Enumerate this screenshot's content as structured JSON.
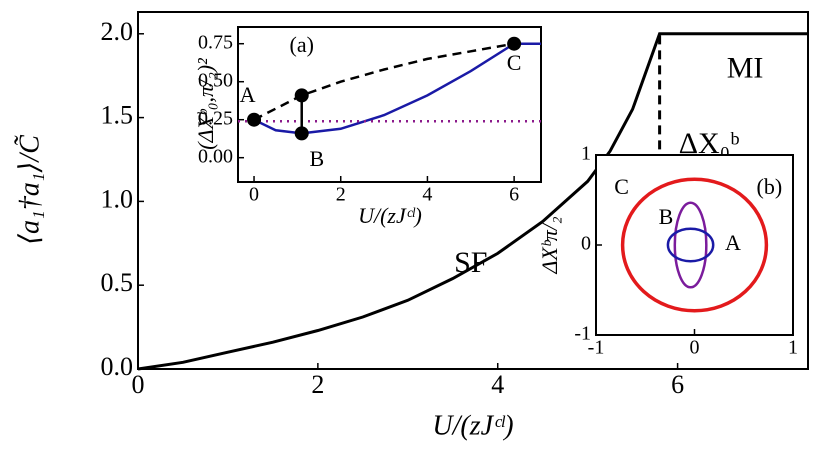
{
  "chart_data": [
    {
      "type": "line",
      "xlabel": "U/(zJᶜˡ)",
      "ylabel": "⟨a₁†a₁⟩/C̃",
      "xlim": [
        0,
        7.45
      ],
      "xticks": [
        0,
        2,
        4,
        6
      ],
      "ylim": [
        0,
        2.13
      ],
      "yticks": [
        {
          "value": 0,
          "label": "0.0"
        },
        0.5,
        {
          "value": 1,
          "label": "1.0"
        },
        1.5,
        {
          "value": 2,
          "label": "2.0"
        }
      ],
      "series": [
        {
          "color": "#000000",
          "style": "solid",
          "x": [
            0,
            0.5,
            1,
            1.5,
            2,
            2.5,
            3,
            3.5,
            4,
            4.5,
            5,
            5.25,
            5.5,
            5.8,
            7.45
          ],
          "values": [
            0,
            0.04,
            0.1,
            0.16,
            0.23,
            0.31,
            0.41,
            0.54,
            0.69,
            0.88,
            1.12,
            1.3,
            1.55,
            2.0,
            2.0
          ]
        }
      ],
      "vlines": [
        {
          "x": 5.8,
          "y": [
            1.31,
            2.0
          ],
          "style": "dashed",
          "color": "#000000"
        }
      ],
      "annotations": [
        {
          "text": "MI",
          "x": 6.75,
          "y": 1.78
        },
        {
          "text": "SF",
          "x": 3.7,
          "y": 0.62
        },
        {
          "text": "ΔX₀ᵇ",
          "x": 6.35,
          "y": 1.33
        }
      ]
    },
    {
      "type": "line",
      "xlabel": "U/(zJᶜˡ)",
      "ylabel": "(ΔXᵇ₀,π/₂)²",
      "xlim": [
        -0.37,
        6.62
      ],
      "xticks": [
        0,
        2,
        4,
        6
      ],
      "ylim": [
        -0.16,
        0.86
      ],
      "yticks": [
        {
          "value": 0,
          "label": "0.00"
        },
        0.25,
        {
          "value": 0.5,
          "label": "0.50"
        },
        0.75
      ],
      "series": [
        {
          "color": "#000000",
          "style": "dashed",
          "x": [
            0,
            1.1,
            2,
            3,
            4,
            5,
            6
          ],
          "values": [
            0.25,
            0.41,
            0.5,
            0.58,
            0.65,
            0.7,
            0.75
          ]
        },
        {
          "color": "#1a1aa6",
          "style": "solid",
          "x": [
            0,
            0.5,
            1.1,
            2,
            3,
            4,
            5,
            6,
            6.62
          ],
          "values": [
            0.25,
            0.18,
            0.16,
            0.19,
            0.28,
            0.41,
            0.57,
            0.75,
            0.75
          ]
        },
        {
          "color": "#8b1a8b",
          "style": "dotted",
          "x": [
            -0.37,
            6.62
          ],
          "values": [
            0.24,
            0.24
          ]
        }
      ],
      "vlines": [
        {
          "x": 1.1,
          "y": [
            0.16,
            0.41
          ],
          "style": "solid",
          "color": "#000000"
        }
      ],
      "points": {
        "color": "#000000",
        "x": [
          0,
          1.1,
          1.1,
          6
        ],
        "values": [
          0.25,
          0.16,
          0.41,
          0.75
        ]
      },
      "annotations": [
        {
          "text": "(a)",
          "x": 1.1,
          "y": 0.73
        },
        {
          "text": "A",
          "x": -0.15,
          "y": 0.4
        },
        {
          "text": "B",
          "x": 1.45,
          "y": -0.02
        },
        {
          "text": "C",
          "x": 6.0,
          "y": 0.61
        }
      ]
    },
    {
      "type": "ellipse",
      "ylabel": "ΔXᵇπ/₂",
      "xlim": [
        -1.0,
        1.0
      ],
      "xticks": [
        -1,
        0,
        1
      ],
      "ylim": [
        -1.0,
        1.0
      ],
      "yticks": [
        -1,
        0,
        1
      ],
      "series": [
        {
          "color": "#e31a1c",
          "cx": 0,
          "cy": 0,
          "rx": 0.73,
          "ry": 0.73
        },
        {
          "color": "#7b1c9c",
          "cx": -0.04,
          "cy": 0,
          "rx": 0.16,
          "ry": 0.47
        },
        {
          "color": "#1a1aa6",
          "cx": -0.04,
          "cy": 0,
          "rx": 0.23,
          "ry": 0.18
        }
      ],
      "annotations": [
        {
          "text": "C",
          "x": -0.74,
          "y": 0.62
        },
        {
          "text": "(b)",
          "x": 0.76,
          "y": 0.62
        },
        {
          "text": "B",
          "x": -0.29,
          "y": 0.29
        },
        {
          "text": "A",
          "x": 0.39,
          "y": 0.0
        }
      ]
    }
  ]
}
